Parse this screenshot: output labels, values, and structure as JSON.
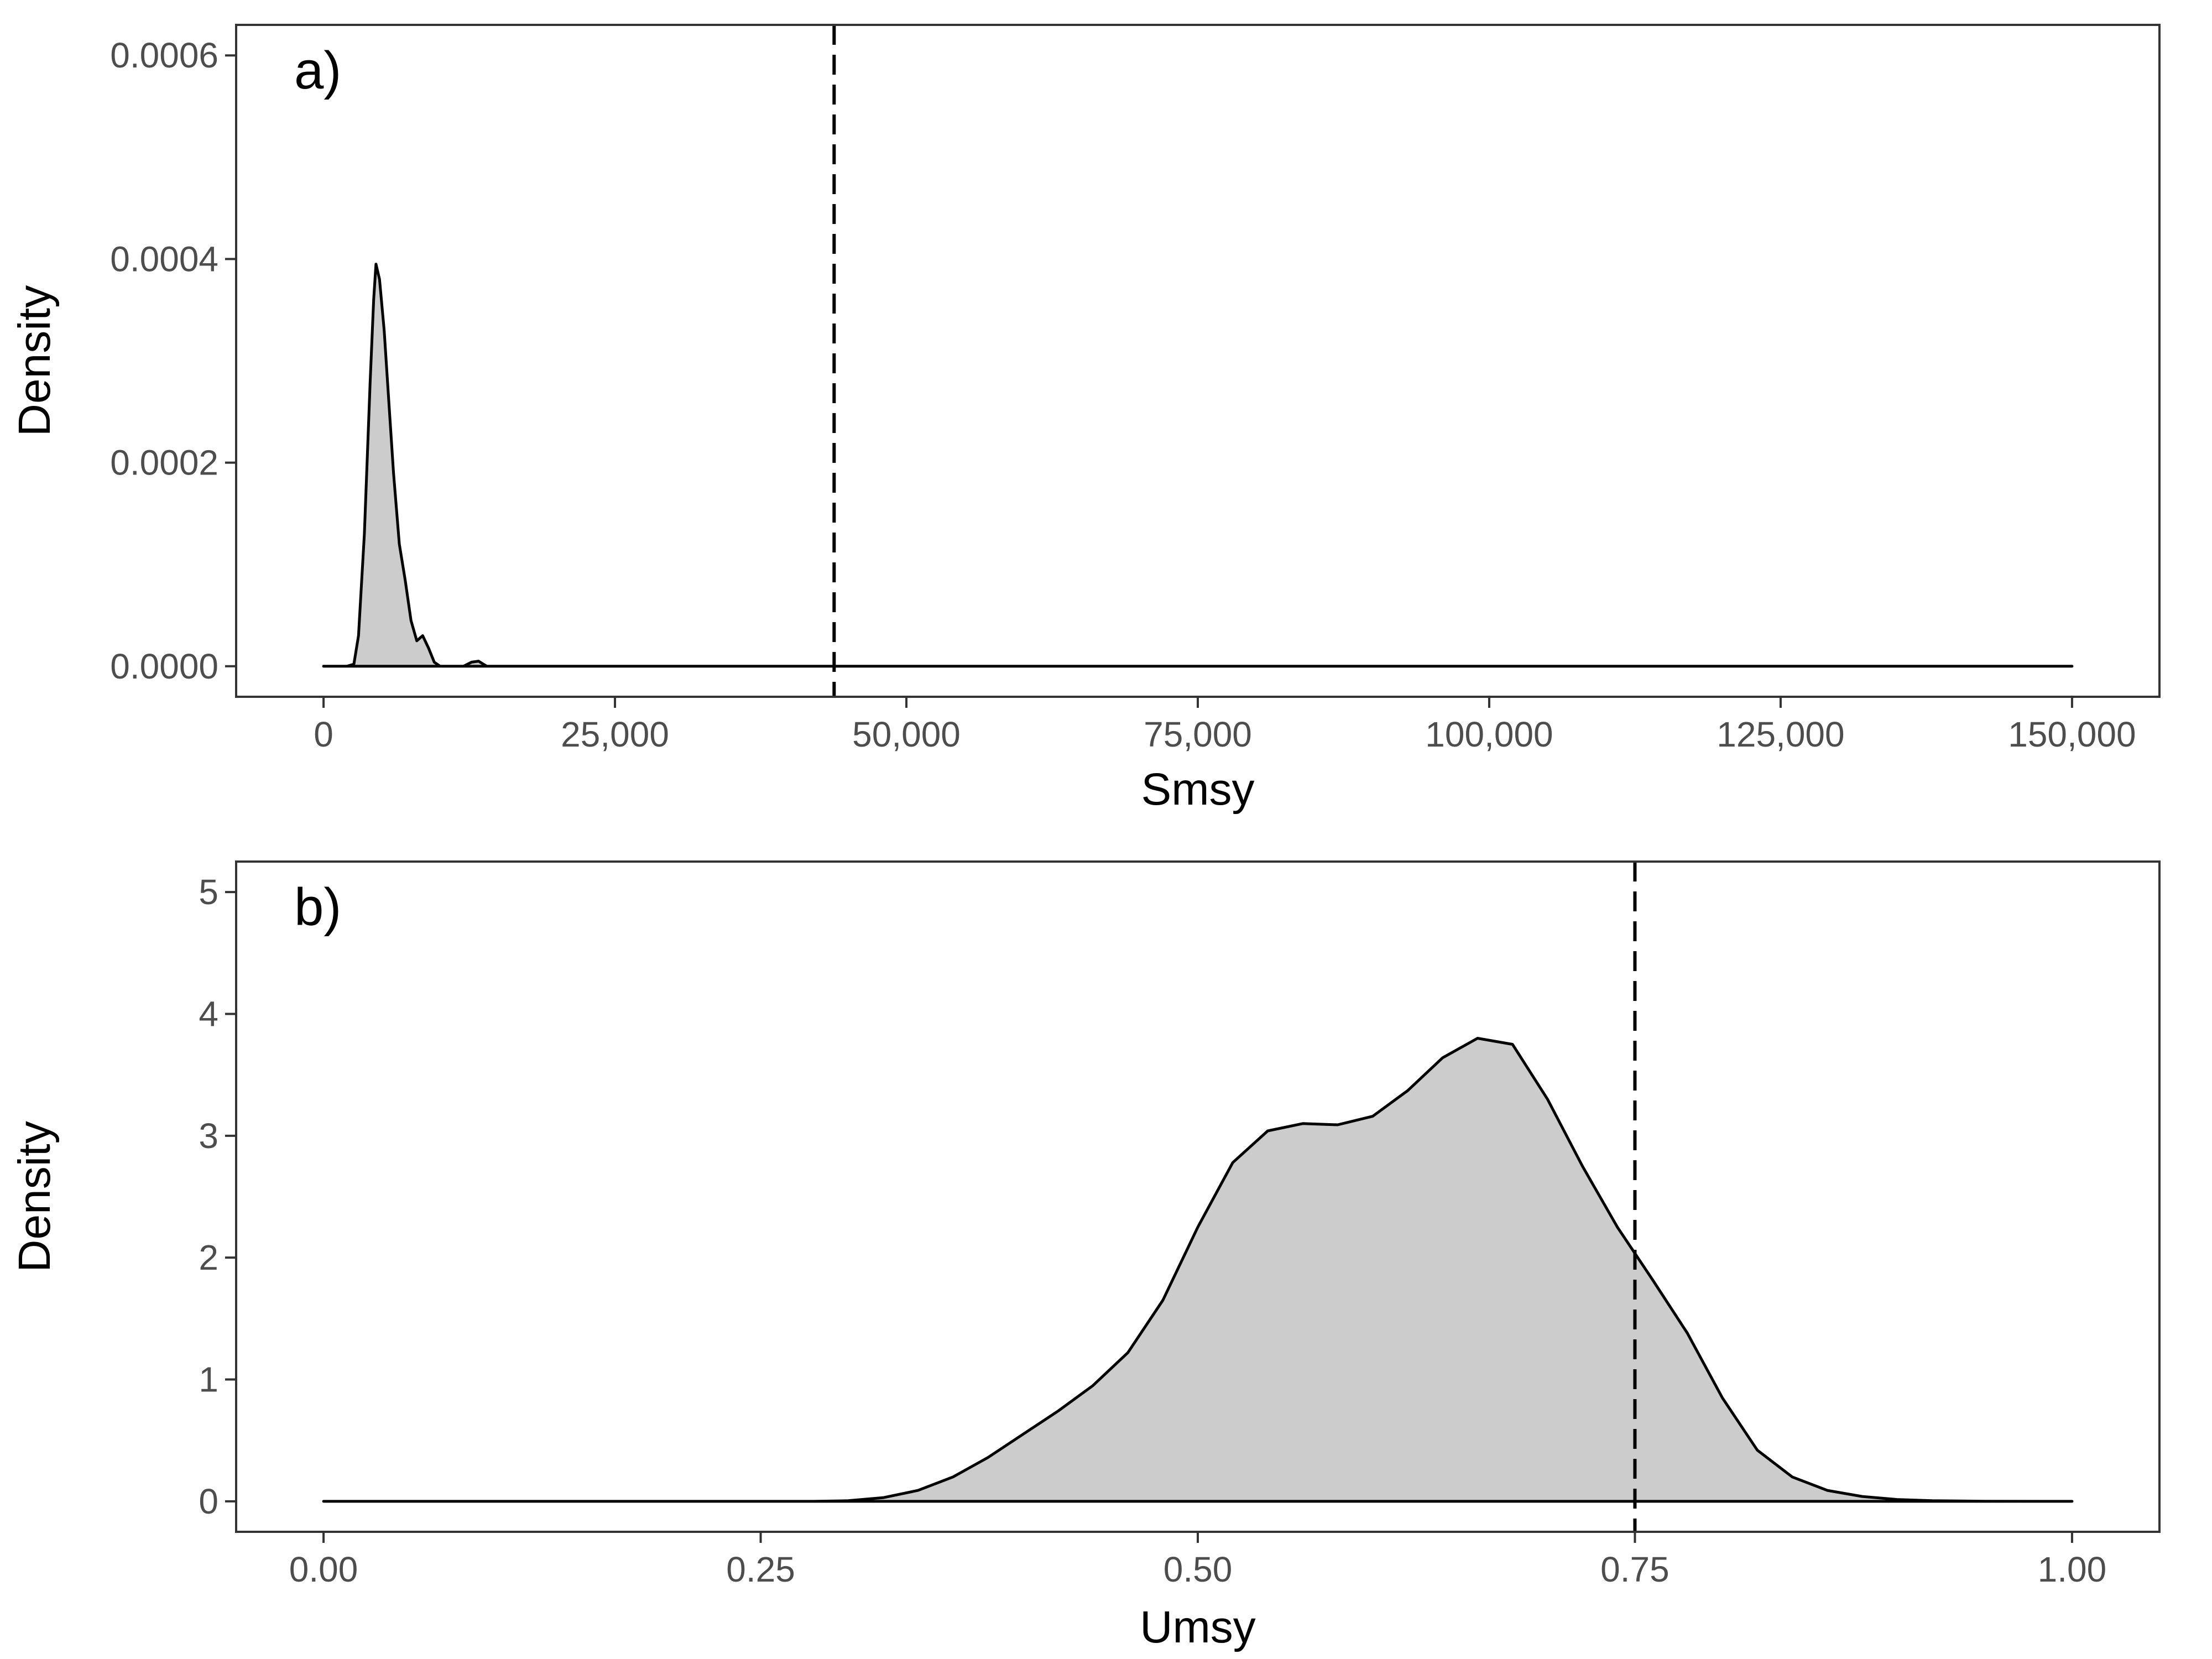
{
  "chart_data": [
    {
      "type": "area",
      "panel_tag": "a)",
      "xlabel": "Smsy",
      "ylabel": "Density",
      "xlim": [
        -7500,
        157500
      ],
      "ylim": [
        -3e-05,
        0.00063
      ],
      "x_ticks": [
        0,
        25000,
        50000,
        75000,
        100000,
        125000,
        150000
      ],
      "x_tick_labels": [
        "0",
        "25,000",
        "50,000",
        "75,000",
        "100,000",
        "125,000",
        "150,000"
      ],
      "y_ticks": [
        0,
        0.0002,
        0.0004,
        0.0006
      ],
      "y_tick_labels": [
        "0.0000",
        "0.0002",
        "0.0004",
        "0.0006"
      ],
      "fill_color": "#cccccc",
      "line_color": "#000000",
      "reference_line": {
        "x": 43800,
        "style": "dashed"
      },
      "grid": false,
      "series": [
        {
          "x": [
            0,
            2000,
            2600,
            3000,
            3500,
            4000,
            4300,
            4500,
            4800,
            5200,
            5600,
            6000,
            6500,
            7000,
            7500,
            8000,
            8500,
            9000,
            9500,
            10000,
            11000,
            12000,
            12700,
            13300,
            14000,
            15000,
            20000,
            40000,
            60000,
            80000,
            100000,
            120000,
            150000
          ],
          "y": [
            0,
            0,
            2e-06,
            3e-05,
            0.00013,
            0.00028,
            0.00036,
            0.000395,
            0.00038,
            0.00033,
            0.00026,
            0.00019,
            0.00012,
            8.5e-05,
            4.5e-05,
            2.5e-05,
            3e-05,
            1.8e-05,
            4e-06,
            0,
            0,
            0,
            4e-06,
            5e-06,
            0,
            0,
            0,
            0,
            0,
            0,
            0,
            0,
            0
          ]
        }
      ]
    },
    {
      "type": "area",
      "panel_tag": "b)",
      "xlabel": "Umsy",
      "ylabel": "Density",
      "xlim": [
        -0.05,
        1.05
      ],
      "ylim": [
        -0.25,
        5.25
      ],
      "x_ticks": [
        0,
        0.25,
        0.5,
        0.75,
        1
      ],
      "x_tick_labels": [
        "0.00",
        "0.25",
        "0.50",
        "0.75",
        "1.00"
      ],
      "y_ticks": [
        0,
        1,
        2,
        3,
        4,
        5
      ],
      "y_tick_labels": [
        "0",
        "1",
        "2",
        "3",
        "4",
        "5"
      ],
      "fill_color": "#cccccc",
      "line_color": "#000000",
      "reference_line": {
        "x": 0.75,
        "style": "dashed"
      },
      "grid": false,
      "series": [
        {
          "x": [
            0,
            0.05,
            0.1,
            0.15,
            0.2,
            0.25,
            0.28,
            0.3,
            0.32,
            0.34,
            0.36,
            0.38,
            0.4,
            0.42,
            0.44,
            0.46,
            0.48,
            0.5,
            0.52,
            0.54,
            0.56,
            0.58,
            0.6,
            0.62,
            0.64,
            0.66,
            0.68,
            0.7,
            0.72,
            0.74,
            0.76,
            0.78,
            0.8,
            0.82,
            0.84,
            0.86,
            0.88,
            0.9,
            0.92,
            0.95,
            1.0
          ],
          "y": [
            0,
            0,
            0,
            0,
            0,
            0,
            0,
            0.005,
            0.03,
            0.09,
            0.2,
            0.36,
            0.55,
            0.74,
            0.95,
            1.22,
            1.65,
            2.25,
            2.78,
            3.04,
            3.1,
            3.09,
            3.16,
            3.37,
            3.64,
            3.8,
            3.75,
            3.3,
            2.75,
            2.25,
            1.82,
            1.38,
            0.85,
            0.42,
            0.2,
            0.09,
            0.04,
            0.015,
            0.005,
            0.001,
            0
          ]
        }
      ]
    }
  ]
}
